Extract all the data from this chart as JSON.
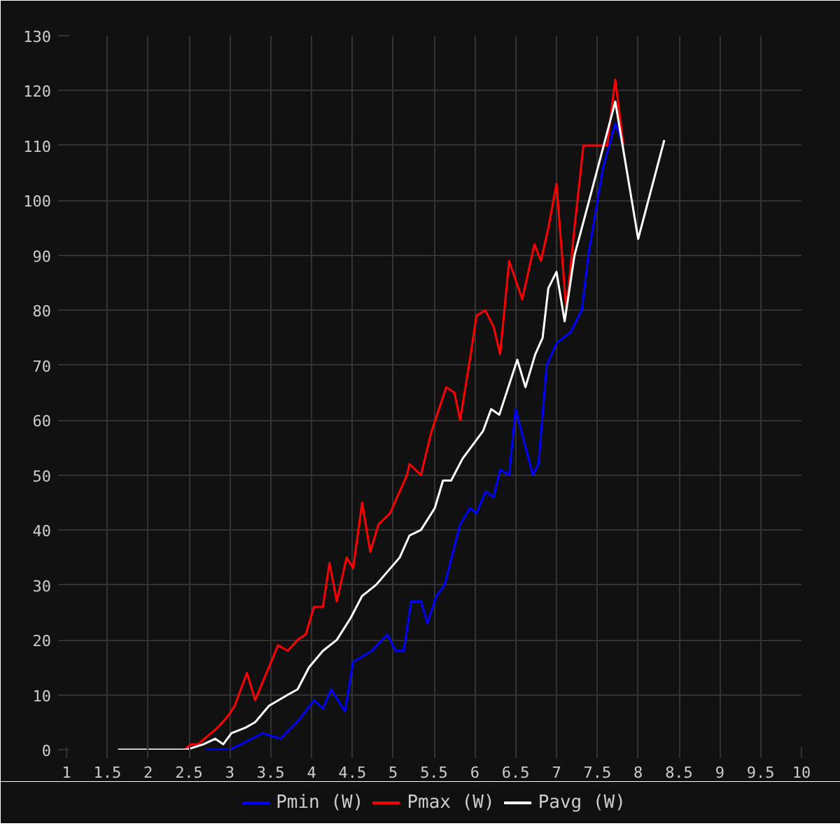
{
  "chart_data": {
    "type": "line",
    "xlim": [
      1,
      10
    ],
    "ylim": [
      0,
      130
    ],
    "xticks": [
      1,
      1.5,
      2,
      2.5,
      3,
      3.5,
      4,
      4.5,
      5,
      5.5,
      6,
      6.5,
      7,
      7.5,
      8,
      8.5,
      9,
      9.5,
      10
    ],
    "yticks": [
      0,
      10,
      20,
      30,
      40,
      50,
      60,
      70,
      80,
      90,
      100,
      110,
      120,
      130
    ],
    "grid": true,
    "legend": "bottom",
    "marker": "none",
    "line_style": "solid",
    "series": [
      {
        "name": "Pmin (W)",
        "color": "#0000ff",
        "x": [
          2.7,
          3.0,
          3.14,
          3.4,
          3.62,
          3.88,
          4.03,
          4.14,
          4.24,
          4.41,
          4.51,
          4.74,
          4.93,
          5.03,
          5.13,
          5.22,
          5.34,
          5.42,
          5.53,
          5.63,
          5.82,
          5.94,
          6.02,
          6.13,
          6.23,
          6.31,
          6.42,
          6.5,
          6.71,
          6.78,
          6.88,
          7.0,
          7.17,
          7.31,
          7.39,
          7.57,
          7.72,
          7.82
        ],
        "values": [
          0,
          0,
          1,
          3,
          2,
          6,
          9,
          7.5,
          11,
          7,
          16,
          18,
          21,
          18,
          18,
          27,
          27,
          23,
          28,
          30,
          41,
          44,
          43,
          47,
          46,
          51,
          50,
          62,
          50,
          52,
          70,
          74,
          76,
          80,
          90,
          106,
          114,
          110
        ]
      },
      {
        "name": "Pmax (W)",
        "color": "#ff0000",
        "x": [
          2.44,
          2.53,
          2.61,
          2.85,
          2.97,
          3.06,
          3.21,
          3.31,
          3.45,
          3.59,
          3.71,
          3.83,
          3.93,
          4.03,
          4.14,
          4.22,
          4.31,
          4.43,
          4.51,
          4.62,
          4.72,
          4.82,
          4.96,
          5.17,
          5.2,
          5.34,
          5.47,
          5.65,
          5.75,
          5.82,
          5.95,
          6.02,
          6.13,
          6.23,
          6.31,
          6.42,
          6.58,
          6.73,
          6.81,
          6.9,
          7.0,
          7.12,
          7.22,
          7.33,
          7.62,
          7.72,
          7.82
        ],
        "values": [
          0,
          1,
          1,
          4,
          6,
          8,
          14,
          9,
          14,
          19,
          18,
          20,
          21,
          26,
          26,
          34,
          27,
          35,
          33,
          45,
          36,
          41,
          43,
          50,
          52,
          50,
          58,
          66,
          65,
          60,
          72,
          79,
          80,
          77,
          72,
          89,
          82,
          92,
          89,
          95,
          103,
          80,
          95,
          110,
          110,
          122,
          110
        ]
      },
      {
        "name": "Pavg (W)",
        "color": "#ffffff",
        "x": [
          1.63,
          2.47,
          2.68,
          2.82,
          2.92,
          3.02,
          3.19,
          3.31,
          3.48,
          3.71,
          3.83,
          3.97,
          4.14,
          4.31,
          4.48,
          4.62,
          4.79,
          5.08,
          5.2,
          5.34,
          5.51,
          5.61,
          5.71,
          5.85,
          6.1,
          6.2,
          6.3,
          6.52,
          6.62,
          6.74,
          6.83,
          6.9,
          7.0,
          7.1,
          7.22,
          7.4,
          7.72,
          8.0,
          8.32
        ],
        "values": [
          0,
          0,
          1,
          2,
          1,
          3,
          4,
          5,
          8,
          10,
          11,
          15,
          18,
          20,
          24,
          28,
          30,
          35,
          39,
          40,
          44,
          49,
          49,
          53,
          58,
          62,
          61,
          71,
          66,
          72,
          75,
          84,
          87,
          78,
          90,
          100,
          118,
          93,
          111
        ]
      }
    ]
  }
}
